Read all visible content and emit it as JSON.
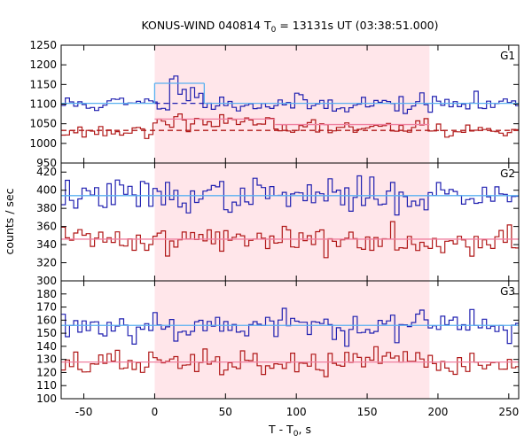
{
  "chart_data": {
    "type": "line",
    "title": "KONUS-WIND 040814 T0 = 13131s UT (03:38:51.000)",
    "title_parts": {
      "prefix": "KONUS-WIND 040814 T",
      "sub": "0",
      "suffix": " = 13131s UT (03:38:51.000)"
    },
    "xlabel": "T - T0, s",
    "xlabel_parts": {
      "prefix": "T - T",
      "sub": "0",
      "suffix": ", s"
    },
    "ylabel": "counts / sec",
    "xlim": [
      -66,
      257
    ],
    "xticks": [
      -50,
      0,
      50,
      100,
      150,
      200,
      250
    ],
    "highlight_interval": [
      0,
      194
    ],
    "colors": {
      "upper_series": "#2020b0",
      "lower_series": "#b01818",
      "upper_fit": "#59b0f0",
      "lower_fit": "#f080a0",
      "highlight": "#ffe6ea"
    },
    "panels": [
      {
        "label": "G1",
        "ylim": [
          950,
          1250
        ],
        "yticks": [
          950,
          1000,
          1050,
          1100,
          1150,
          1200,
          1250
        ],
        "series": [
          {
            "role": "upper",
            "mean": 1100,
            "sd": 12,
            "seed": 11,
            "bumps": [
              {
                "x0": 10,
                "x1": 35,
                "amp": 55
              }
            ]
          },
          {
            "role": "lower",
            "mean": 1030,
            "sd": 8,
            "seed": 23,
            "bumps": [
              {
                "x0": 0,
                "x1": 85,
                "amp": 30
              },
              {
                "x0": 85,
                "x1": 195,
                "amp": 12
              }
            ]
          }
        ],
        "fits": [
          {
            "role": "upper",
            "style": "solid",
            "segments": [
              [
                -66,
                0,
                1102
              ],
              [
                0,
                35,
                1153
              ],
              [
                35,
                257,
                1102
              ]
            ]
          },
          {
            "role": "upper",
            "style": "dashed",
            "segments": [
              [
                0,
                35,
                1102
              ]
            ]
          },
          {
            "role": "lower",
            "style": "solid",
            "segments": [
              [
                0,
                85,
                1062
              ],
              [
                85,
                194,
                1048
              ]
            ]
          },
          {
            "role": "lower",
            "style": "dashed",
            "segments": [
              [
                -66,
                257,
                1033
              ]
            ]
          }
        ]
      },
      {
        "label": "G2",
        "ylim": [
          300,
          430
        ],
        "yticks": [
          300,
          320,
          340,
          360,
          380,
          400,
          420
        ],
        "series": [
          {
            "role": "upper",
            "mean": 394,
            "sd": 9,
            "seed": 37,
            "bumps": []
          },
          {
            "role": "lower",
            "mean": 346,
            "sd": 8,
            "seed": 41,
            "bumps": []
          }
        ],
        "fits": [
          {
            "role": "upper",
            "style": "solid",
            "segments": [
              [
                -66,
                257,
                394
              ]
            ]
          },
          {
            "role": "lower",
            "style": "solid",
            "segments": [
              [
                -66,
                257,
                346
              ]
            ]
          }
        ]
      },
      {
        "label": "G3",
        "ylim": [
          100,
          190
        ],
        "yticks": [
          100,
          110,
          120,
          130,
          140,
          150,
          160,
          170,
          180
        ],
        "series": [
          {
            "role": "upper",
            "mean": 156,
            "sd": 6,
            "seed": 53,
            "bumps": []
          },
          {
            "role": "lower",
            "mean": 127,
            "sd": 5,
            "seed": 67,
            "bumps": []
          }
        ],
        "fits": [
          {
            "role": "lower",
            "style": "solid",
            "segments": [
              [
                -66,
                257,
                128
              ]
            ]
          },
          {
            "role": "upper",
            "style": "solid",
            "segments": [
              [
                -66,
                257,
                156
              ]
            ]
          }
        ]
      }
    ]
  }
}
